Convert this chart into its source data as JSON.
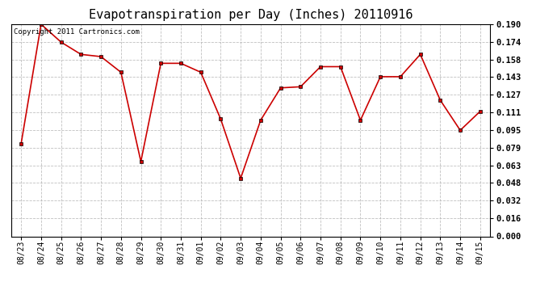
{
  "title": "Evapotranspiration per Day (Inches) 20110916",
  "copyright": "Copyright 2011 Cartronics.com",
  "x_labels": [
    "08/23",
    "08/24",
    "08/25",
    "08/26",
    "08/27",
    "08/28",
    "08/29",
    "08/30",
    "08/31",
    "09/01",
    "09/02",
    "09/03",
    "09/04",
    "09/05",
    "09/06",
    "09/07",
    "09/08",
    "09/09",
    "09/10",
    "09/11",
    "09/12",
    "09/13",
    "09/14",
    "09/15"
  ],
  "y_values": [
    0.083,
    0.19,
    0.174,
    0.163,
    0.161,
    0.147,
    0.067,
    0.155,
    0.155,
    0.147,
    0.105,
    0.052,
    0.104,
    0.133,
    0.134,
    0.152,
    0.152,
    0.104,
    0.143,
    0.143,
    0.163,
    0.122,
    0.095,
    0.112
  ],
  "line_color": "#cc0000",
  "marker": "s",
  "marker_size": 3,
  "ylim": [
    0.0,
    0.19
  ],
  "yticks": [
    0.0,
    0.016,
    0.032,
    0.048,
    0.063,
    0.079,
    0.095,
    0.111,
    0.127,
    0.143,
    0.158,
    0.174,
    0.19
  ],
  "ytick_labels": [
    "0.000",
    "0.016",
    "0.032",
    "0.048",
    "0.063",
    "0.079",
    "0.095",
    "0.111",
    "0.127",
    "0.143",
    "0.158",
    "0.174",
    "0.190"
  ],
  "bg_color": "#ffffff",
  "plot_bg_color": "#ffffff",
  "grid_color": "#b0b0b0",
  "title_fontsize": 11,
  "copyright_fontsize": 6.5,
  "tick_fontsize": 7,
  "ytick_fontsize": 7.5
}
